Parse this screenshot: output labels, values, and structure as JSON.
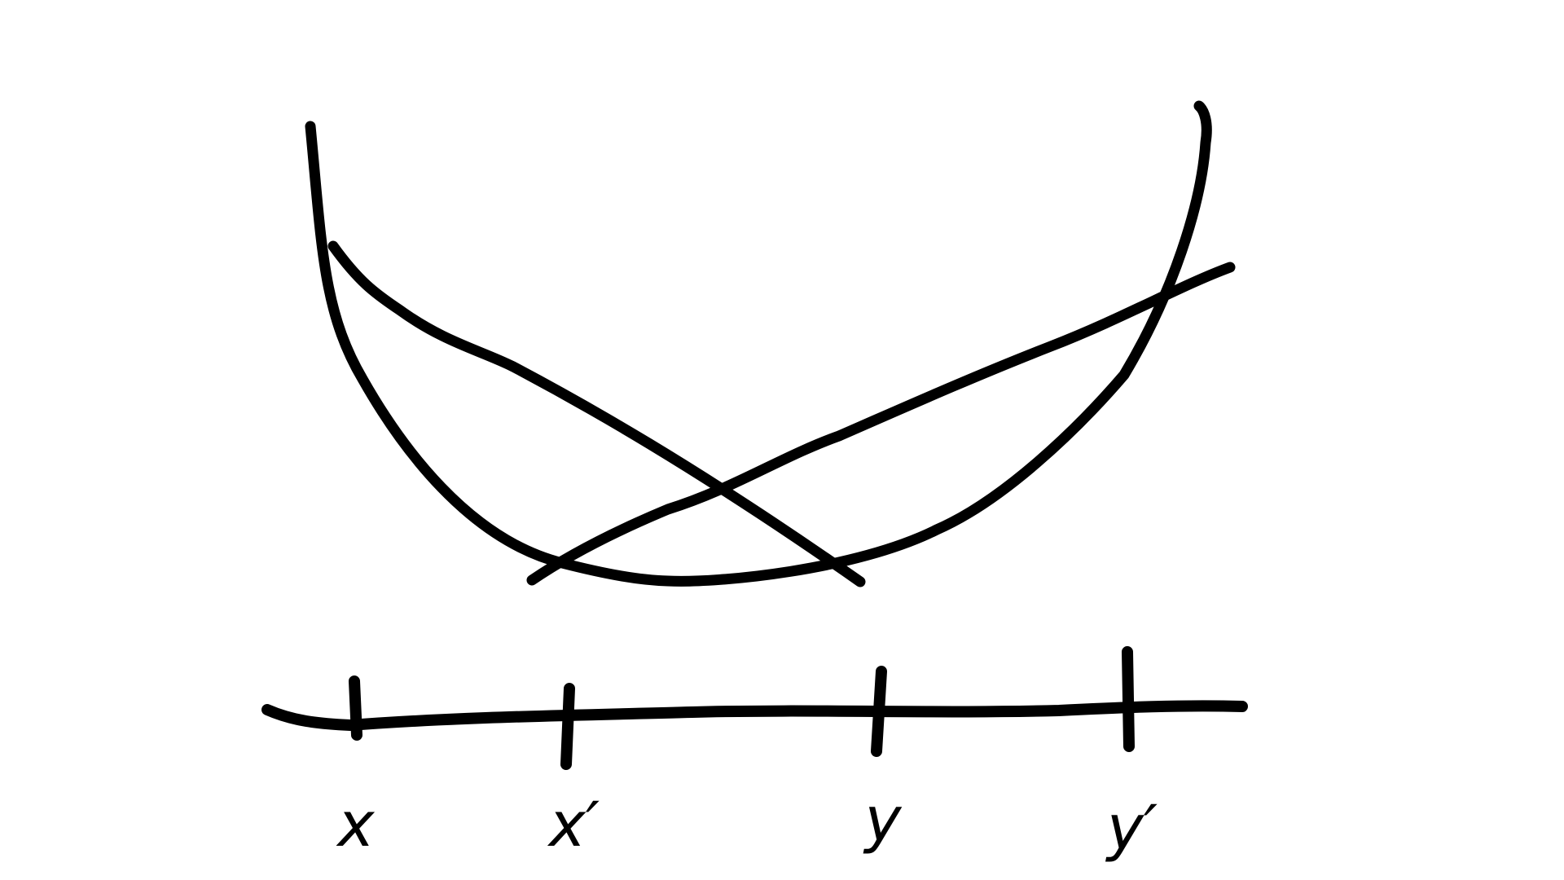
{
  "colors": {
    "background": "#ffffff",
    "ink": "#000000"
  },
  "diagram": {
    "curves": [
      {
        "name": "big-u-curve"
      },
      {
        "name": "descending-curve"
      },
      {
        "name": "ascending-curve"
      }
    ],
    "axis": {
      "ticks": [
        {
          "label": "x"
        },
        {
          "label": "x′"
        },
        {
          "label": "y"
        },
        {
          "label": "y′"
        }
      ]
    }
  }
}
